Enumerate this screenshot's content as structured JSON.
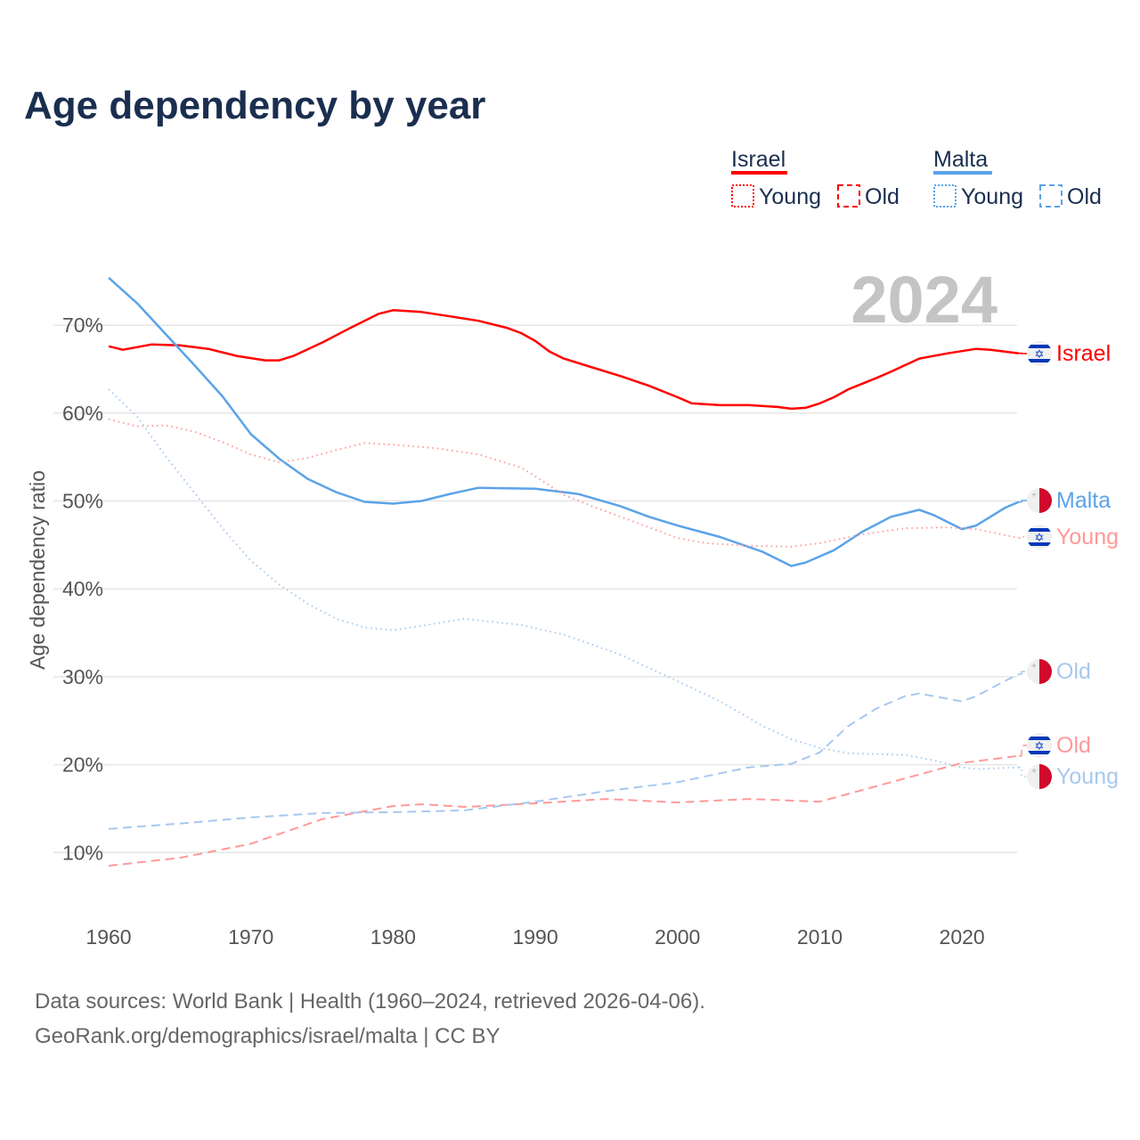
{
  "chart_data": {
    "type": "line",
    "title": "Age dependency by year",
    "ylabel": "Age dependency ratio",
    "xlabel": "",
    "xlim": [
      1960,
      2024
    ],
    "ylim": [
      0,
      75
    ],
    "x_ticks": [
      1960,
      1970,
      1980,
      1990,
      2000,
      2010,
      2020
    ],
    "y_ticks": [
      10,
      20,
      30,
      40,
      50,
      60,
      70
    ],
    "y_tick_labels": [
      "10%",
      "20%",
      "30%",
      "40%",
      "50%",
      "60%",
      "70%"
    ],
    "grid": true,
    "year_watermark": "2024",
    "legend": {
      "placement": "top-right",
      "groups": [
        {
          "country": "Israel",
          "color": "#ff0000",
          "items": [
            "Young",
            "Old"
          ]
        },
        {
          "country": "Malta",
          "color": "#5ba3e8",
          "items": [
            "Young",
            "Old"
          ]
        }
      ]
    },
    "series": [
      {
        "name": "Israel",
        "country": "Israel",
        "kind": "total",
        "label": "Israel",
        "color": "#ff0000",
        "style": "solid",
        "points": [
          [
            1960,
            67.6
          ],
          [
            1961,
            67.2
          ],
          [
            1963,
            67.8
          ],
          [
            1965,
            67.7
          ],
          [
            1967,
            67.3
          ],
          [
            1969,
            66.5
          ],
          [
            1971,
            66.0
          ],
          [
            1972,
            66.0
          ],
          [
            1973,
            66.5
          ],
          [
            1975,
            68.0
          ],
          [
            1977,
            69.7
          ],
          [
            1979,
            71.3
          ],
          [
            1980,
            71.7
          ],
          [
            1982,
            71.5
          ],
          [
            1984,
            71.0
          ],
          [
            1986,
            70.5
          ],
          [
            1988,
            69.7
          ],
          [
            1989,
            69.1
          ],
          [
            1990,
            68.2
          ],
          [
            1991,
            67.0
          ],
          [
            1992,
            66.2
          ],
          [
            1994,
            65.2
          ],
          [
            1996,
            64.2
          ],
          [
            1998,
            63.1
          ],
          [
            2000,
            61.8
          ],
          [
            2001,
            61.1
          ],
          [
            2003,
            60.9
          ],
          [
            2005,
            60.9
          ],
          [
            2007,
            60.7
          ],
          [
            2008,
            60.5
          ],
          [
            2009,
            60.6
          ],
          [
            2010,
            61.1
          ],
          [
            2011,
            61.8
          ],
          [
            2012,
            62.7
          ],
          [
            2014,
            64.0
          ],
          [
            2015,
            64.7
          ],
          [
            2017,
            66.2
          ],
          [
            2019,
            66.8
          ],
          [
            2021,
            67.3
          ],
          [
            2022,
            67.2
          ],
          [
            2024,
            66.8
          ]
        ]
      },
      {
        "name": "Malta",
        "country": "Malta",
        "kind": "total",
        "label": "Malta",
        "color": "#5ba3e8",
        "style": "solid",
        "points": [
          [
            1960,
            75.4
          ],
          [
            1962,
            72.5
          ],
          [
            1964,
            69.0
          ],
          [
            1966,
            65.5
          ],
          [
            1968,
            61.9
          ],
          [
            1970,
            57.6
          ],
          [
            1972,
            54.8
          ],
          [
            1974,
            52.5
          ],
          [
            1976,
            51.0
          ],
          [
            1978,
            49.9
          ],
          [
            1980,
            49.7
          ],
          [
            1982,
            50.0
          ],
          [
            1984,
            50.8
          ],
          [
            1986,
            51.5
          ],
          [
            1990,
            51.4
          ],
          [
            1993,
            50.8
          ],
          [
            1996,
            49.4
          ],
          [
            1998,
            48.2
          ],
          [
            2000,
            47.2
          ],
          [
            2003,
            45.9
          ],
          [
            2006,
            44.2
          ],
          [
            2008,
            42.6
          ],
          [
            2009,
            43.0
          ],
          [
            2011,
            44.4
          ],
          [
            2013,
            46.5
          ],
          [
            2015,
            48.2
          ],
          [
            2017,
            49.0
          ],
          [
            2018,
            48.4
          ],
          [
            2020,
            46.8
          ],
          [
            2021,
            47.2
          ],
          [
            2023,
            49.2
          ],
          [
            2024,
            49.9
          ]
        ]
      },
      {
        "name": "Israel Young",
        "country": "Israel",
        "kind": "young",
        "label": "Young",
        "color": "#ff9999",
        "style": "dotted",
        "points": [
          [
            1960,
            59.3
          ],
          [
            1962,
            58.5
          ],
          [
            1964,
            58.6
          ],
          [
            1966,
            57.9
          ],
          [
            1968,
            56.7
          ],
          [
            1970,
            55.3
          ],
          [
            1972,
            54.4
          ],
          [
            1974,
            54.9
          ],
          [
            1976,
            55.8
          ],
          [
            1978,
            56.6
          ],
          [
            1980,
            56.4
          ],
          [
            1983,
            56.0
          ],
          [
            1986,
            55.3
          ],
          [
            1989,
            53.8
          ],
          [
            1990,
            52.8
          ],
          [
            1992,
            50.7
          ],
          [
            1994,
            49.4
          ],
          [
            1996,
            48.2
          ],
          [
            1998,
            47.0
          ],
          [
            2000,
            45.8
          ],
          [
            2002,
            45.2
          ],
          [
            2005,
            44.9
          ],
          [
            2008,
            44.8
          ],
          [
            2010,
            45.2
          ],
          [
            2013,
            46.2
          ],
          [
            2016,
            46.9
          ],
          [
            2019,
            47.0
          ],
          [
            2021,
            46.8
          ],
          [
            2024,
            45.8
          ]
        ]
      },
      {
        "name": "Malta Young",
        "country": "Malta",
        "kind": "young",
        "label": "Young",
        "color": "#a8c8ee",
        "style": "dotted",
        "points": [
          [
            1960,
            62.7
          ],
          [
            1962,
            59.6
          ],
          [
            1964,
            55.1
          ],
          [
            1966,
            51.0
          ],
          [
            1968,
            46.9
          ],
          [
            1970,
            43.2
          ],
          [
            1972,
            40.5
          ],
          [
            1974,
            38.3
          ],
          [
            1976,
            36.6
          ],
          [
            1978,
            35.6
          ],
          [
            1980,
            35.3
          ],
          [
            1982,
            35.8
          ],
          [
            1985,
            36.6
          ],
          [
            1989,
            35.9
          ],
          [
            1992,
            34.8
          ],
          [
            1996,
            32.5
          ],
          [
            2000,
            29.5
          ],
          [
            2003,
            27.2
          ],
          [
            2006,
            24.4
          ],
          [
            2008,
            22.9
          ],
          [
            2010,
            21.9
          ],
          [
            2012,
            21.3
          ],
          [
            2016,
            21.1
          ],
          [
            2018,
            20.5
          ],
          [
            2020,
            19.7
          ],
          [
            2021,
            19.5
          ],
          [
            2024,
            19.7
          ]
        ]
      },
      {
        "name": "Israel Old",
        "country": "Israel",
        "kind": "old",
        "label": "Old",
        "color": "#ff9999",
        "style": "dashed",
        "points": [
          [
            1960,
            8.5
          ],
          [
            1965,
            9.4
          ],
          [
            1970,
            11.0
          ],
          [
            1975,
            13.8
          ],
          [
            1980,
            15.3
          ],
          [
            1982,
            15.5
          ],
          [
            1985,
            15.2
          ],
          [
            1990,
            15.6
          ],
          [
            1995,
            16.1
          ],
          [
            2000,
            15.7
          ],
          [
            2005,
            16.1
          ],
          [
            2010,
            15.8
          ],
          [
            2015,
            18.0
          ],
          [
            2020,
            20.2
          ],
          [
            2024,
            21.0
          ]
        ]
      },
      {
        "name": "Malta Old",
        "country": "Malta",
        "kind": "old",
        "label": "Old",
        "color": "#a8c8ee",
        "style": "dashed",
        "points": [
          [
            1960,
            12.7
          ],
          [
            1965,
            13.3
          ],
          [
            1970,
            14.0
          ],
          [
            1975,
            14.5
          ],
          [
            1980,
            14.6
          ],
          [
            1985,
            14.8
          ],
          [
            1990,
            15.8
          ],
          [
            1995,
            17.0
          ],
          [
            2000,
            18.0
          ],
          [
            2005,
            19.7
          ],
          [
            2008,
            20.1
          ],
          [
            2010,
            21.4
          ],
          [
            2012,
            24.4
          ],
          [
            2014,
            26.4
          ],
          [
            2016,
            27.8
          ],
          [
            2017,
            28.1
          ],
          [
            2020,
            27.2
          ],
          [
            2021,
            27.8
          ],
          [
            2023,
            29.5
          ],
          [
            2024,
            30.3
          ]
        ]
      }
    ],
    "source_line1": "Data sources: World Bank | Health (1960–2024, retrieved 2026-04-06).",
    "source_line2": "GeoRank.org/demographics/israel/malta | CC BY"
  }
}
